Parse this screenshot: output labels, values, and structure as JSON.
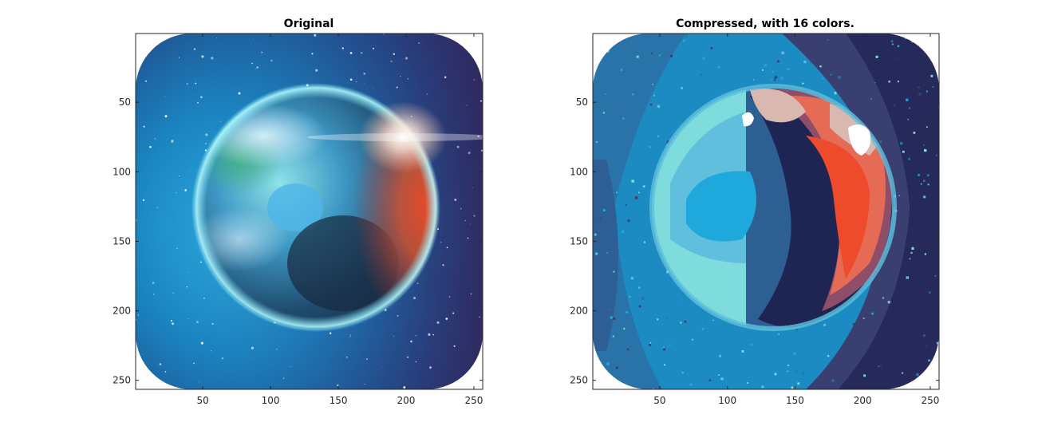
{
  "figure": {
    "panels": [
      {
        "title": "Original",
        "image": "earth-photo",
        "x_ticks": [
          "50",
          "100",
          "150",
          "200",
          "250"
        ],
        "y_ticks": [
          "50",
          "100",
          "150",
          "200",
          "250"
        ],
        "xlim": [
          0.5,
          256.5
        ],
        "ylim": [
          0.5,
          256.5
        ]
      },
      {
        "title": "Compressed, with 16 colors.",
        "image": "earth-photo-quantized",
        "x_ticks": [
          "50",
          "100",
          "150",
          "200",
          "250"
        ],
        "y_ticks": [
          "50",
          "100",
          "150",
          "200",
          "250"
        ],
        "xlim": [
          0.5,
          256.5
        ],
        "ylim": [
          0.5,
          256.5
        ]
      }
    ],
    "colors": {
      "space_light": "#1a8fc8",
      "space_deep": "#1d2a5a",
      "planet_cyan": "#7fdde0",
      "planet_blue": "#2a6fa0",
      "planet_dark": "#1e3050",
      "glow_red": "#ee4a2c",
      "glow_orange": "#f07a4a",
      "axis_color": "#262626"
    }
  }
}
